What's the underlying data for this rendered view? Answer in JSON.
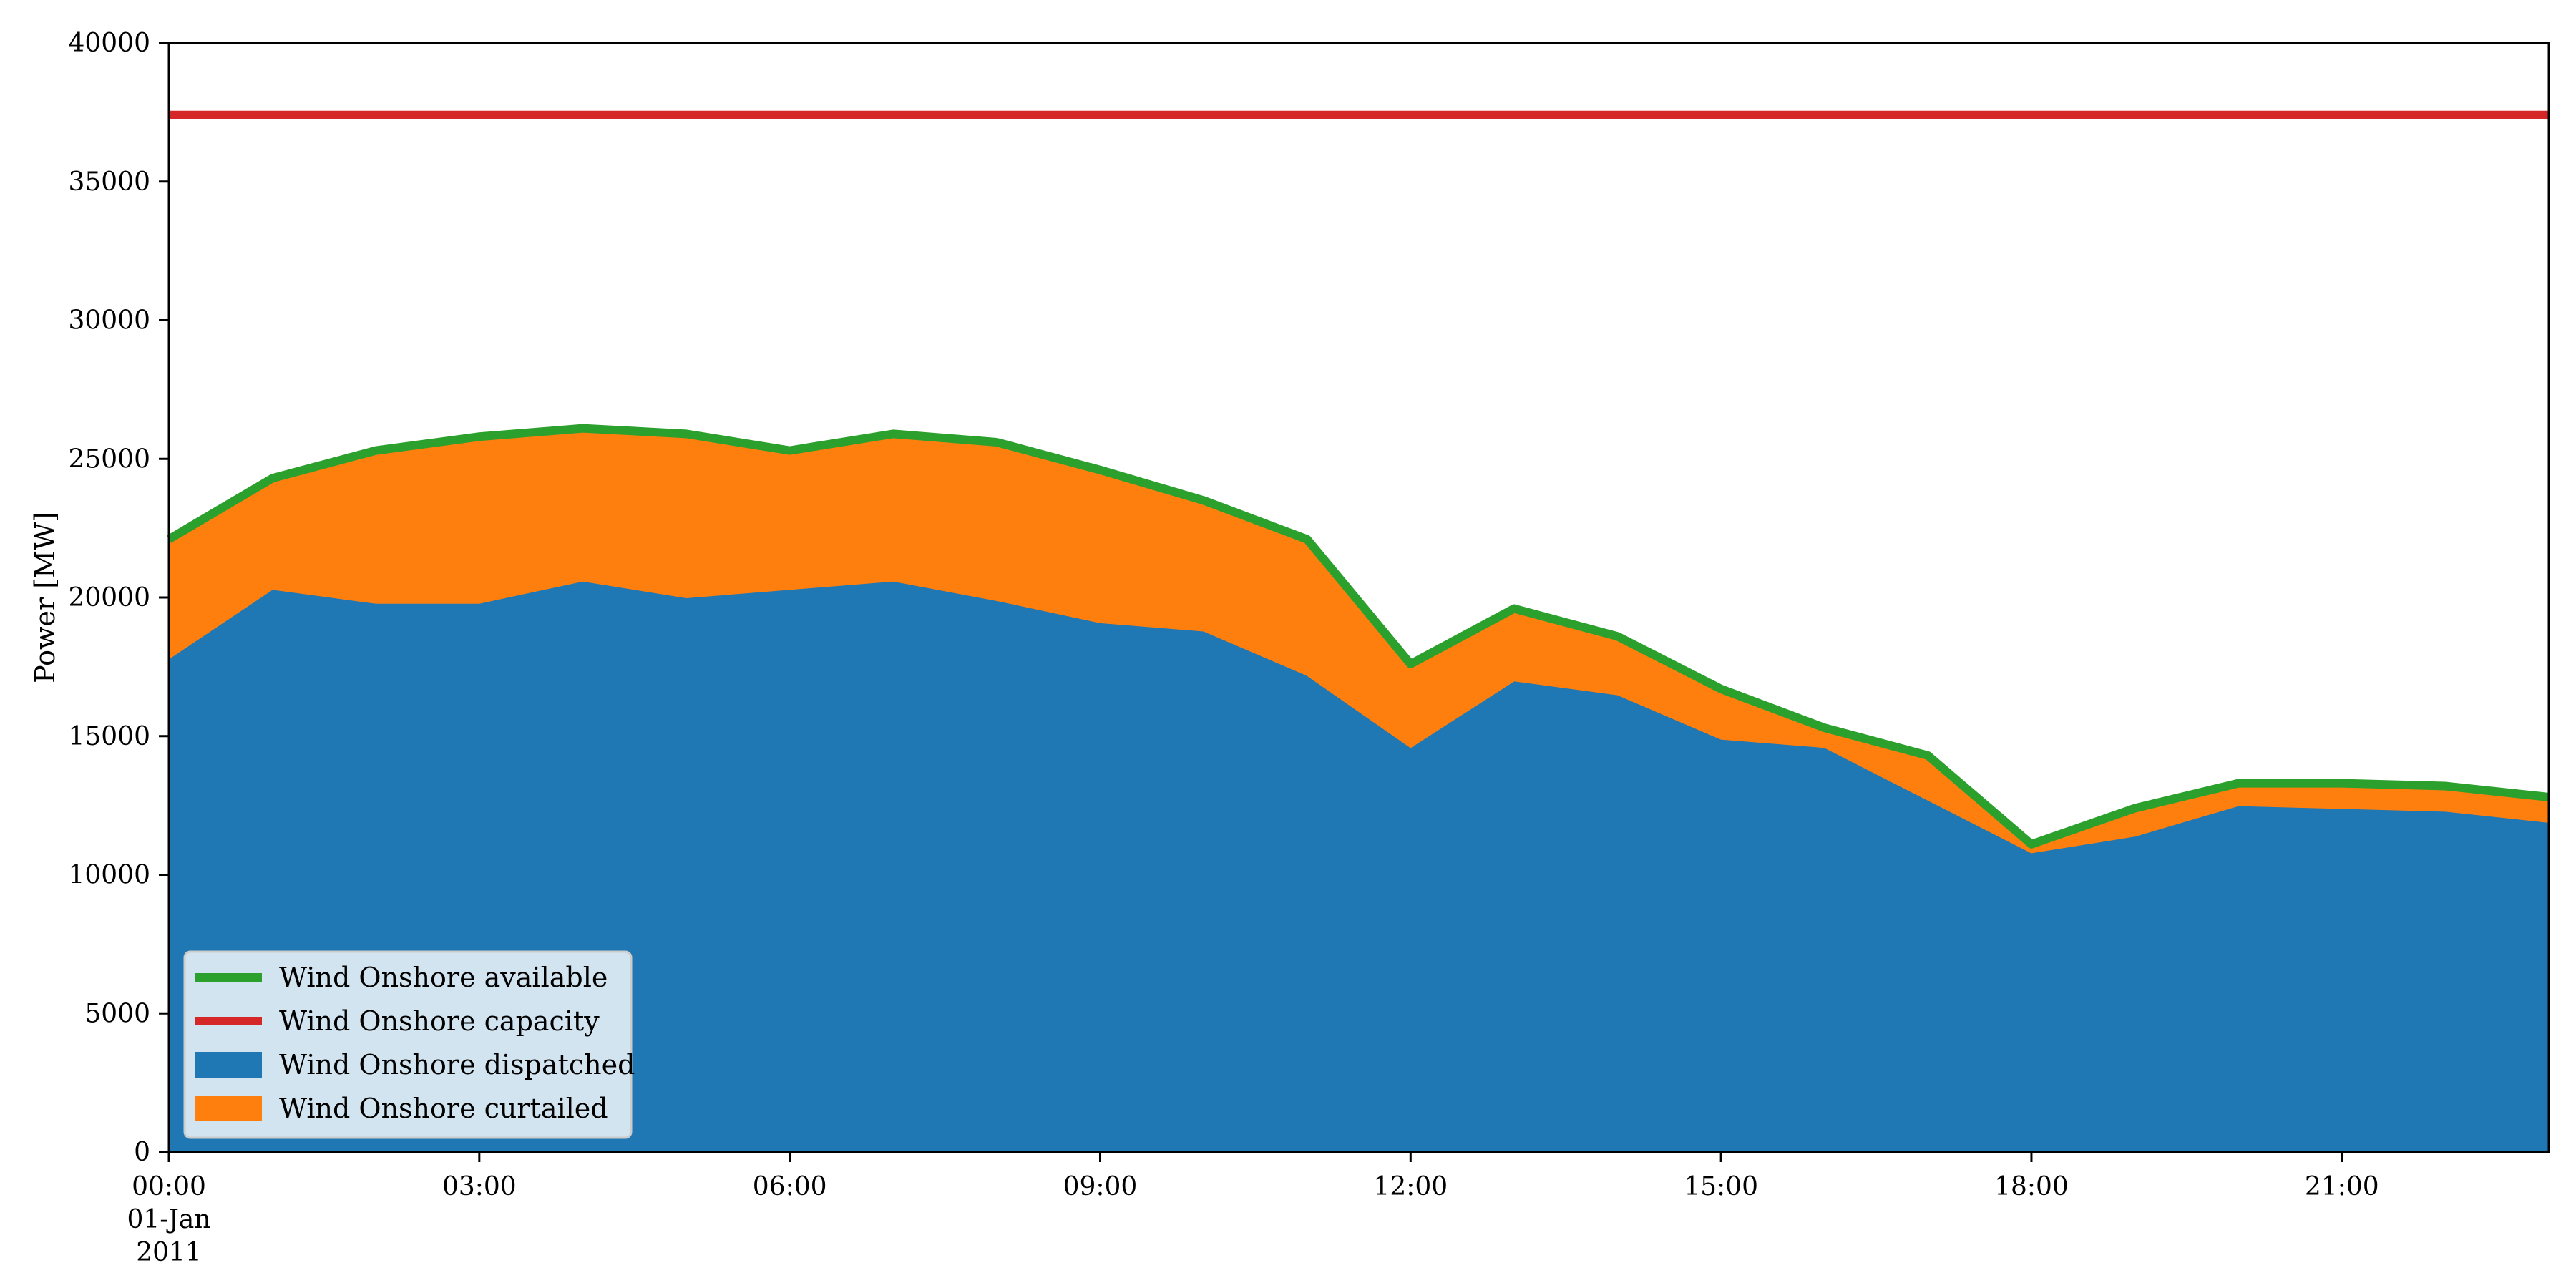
{
  "chart_data": {
    "type": "area",
    "title": "",
    "xlabel": "",
    "ylabel": "Power [MW]",
    "ylim": [
      0,
      40000
    ],
    "yticks": [
      0,
      5000,
      10000,
      15000,
      20000,
      25000,
      30000,
      35000,
      40000
    ],
    "xlim": [
      "2011-01-01 00:00",
      "2011-01-01 23:00"
    ],
    "xticks": [
      {
        "value": "2011-01-01 00:00",
        "lines": [
          "00:00",
          "01-Jan",
          "2011"
        ]
      },
      {
        "value": "2011-01-01 03:00",
        "lines": [
          "03:00"
        ]
      },
      {
        "value": "2011-01-01 06:00",
        "lines": [
          "06:00"
        ]
      },
      {
        "value": "2011-01-01 09:00",
        "lines": [
          "09:00"
        ]
      },
      {
        "value": "2011-01-01 12:00",
        "lines": [
          "12:00"
        ]
      },
      {
        "value": "2011-01-01 15:00",
        "lines": [
          "15:00"
        ]
      },
      {
        "value": "2011-01-01 18:00",
        "lines": [
          "18:00"
        ]
      },
      {
        "value": "2011-01-01 21:00",
        "lines": [
          "21:00"
        ]
      }
    ],
    "x": [
      "00:00",
      "01:00",
      "02:00",
      "03:00",
      "04:00",
      "05:00",
      "06:00",
      "07:00",
      "08:00",
      "09:00",
      "10:00",
      "11:00",
      "12:00",
      "13:00",
      "14:00",
      "15:00",
      "16:00",
      "17:00",
      "18:00",
      "19:00",
      "20:00",
      "21:00",
      "22:00",
      "23:00"
    ],
    "series": [
      {
        "name": "Wind Onshore dispatched",
        "kind": "stacked-area",
        "color": "#1f77b4",
        "values": [
          17800,
          20300,
          19800,
          19800,
          20600,
          20000,
          20300,
          20600,
          19900,
          19100,
          18800,
          17200,
          14600,
          17000,
          16500,
          14900,
          14600,
          12700,
          10800,
          11400,
          12500,
          12400,
          12300,
          11900
        ]
      },
      {
        "name": "Wind Onshore curtailed",
        "kind": "stacked-area",
        "color": "#ff7f0e",
        "values": [
          4300,
          4000,
          5500,
          6000,
          5500,
          5900,
          5000,
          5300,
          5700,
          5500,
          4700,
          4900,
          3000,
          2600,
          2100,
          1800,
          700,
          1600,
          300,
          1000,
          800,
          900,
          900,
          900
        ]
      },
      {
        "name": "Wind Onshore available",
        "kind": "line",
        "color": "#2ca02c",
        "values": [
          22100,
          24300,
          25300,
          25800,
          26100,
          25900,
          25300,
          25900,
          25600,
          24600,
          23500,
          22100,
          17600,
          19600,
          18600,
          16700,
          15300,
          14300,
          11100,
          12400,
          13300,
          13300,
          13200,
          12800
        ]
      },
      {
        "name": "Wind Onshore capacity",
        "kind": "line",
        "color": "#d62728",
        "values": [
          37400,
          37400,
          37400,
          37400,
          37400,
          37400,
          37400,
          37400,
          37400,
          37400,
          37400,
          37400,
          37400,
          37400,
          37400,
          37400,
          37400,
          37400,
          37400,
          37400,
          37400,
          37400,
          37400,
          37400
        ]
      }
    ],
    "legend": {
      "placement": "lower-left",
      "entries": [
        {
          "label": "Wind Onshore available",
          "marker": "line",
          "color": "#2ca02c"
        },
        {
          "label": "Wind Onshore capacity",
          "marker": "line",
          "color": "#d62728"
        },
        {
          "label": "Wind Onshore dispatched",
          "marker": "patch",
          "color": "#1f77b4"
        },
        {
          "label": "Wind Onshore curtailed",
          "marker": "patch",
          "color": "#ff7f0e"
        }
      ]
    },
    "grid": false
  }
}
